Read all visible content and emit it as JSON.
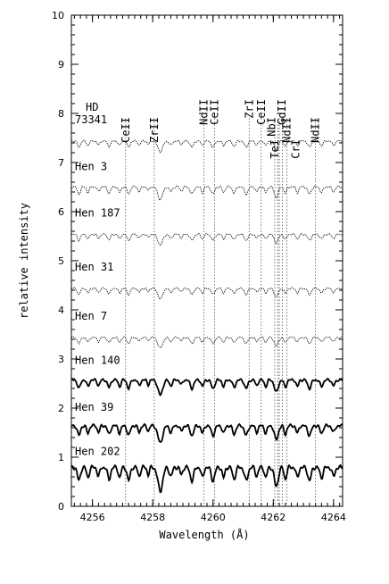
{
  "chart_data": {
    "type": "line",
    "xlabel": "Wavelength (Å)",
    "ylabel": "relative intensity",
    "xlim": [
      4255.3,
      4264.3
    ],
    "ylim": [
      0,
      10
    ],
    "x_ticks": [
      4256,
      4258,
      4260,
      4262,
      4264
    ],
    "y_ticks": [
      0,
      1,
      2,
      3,
      4,
      5,
      6,
      7,
      8,
      9,
      10
    ],
    "series": [
      {
        "name": "HD 73341",
        "label_lines": [
          "HD",
          "73341"
        ],
        "offset": 7.35,
        "amp": 0.25,
        "style": "thin"
      },
      {
        "name": "Hen 3",
        "offset": 6.4,
        "amp": 0.3,
        "style": "thin"
      },
      {
        "name": "Hen 187",
        "offset": 5.45,
        "amp": 0.25,
        "style": "thin"
      },
      {
        "name": "Hen 31",
        "offset": 4.35,
        "amp": 0.25,
        "style": "thin"
      },
      {
        "name": "Hen 7",
        "offset": 3.35,
        "amp": 0.25,
        "style": "thin"
      },
      {
        "name": "Hen 140",
        "offset": 2.45,
        "amp": 0.35,
        "style": "thick"
      },
      {
        "name": "Hen 39",
        "offset": 1.5,
        "amp": 0.4,
        "style": "thick"
      },
      {
        "name": "Hen 202",
        "offset": 0.6,
        "amp": 0.55,
        "style": "thick"
      }
    ],
    "line_ids": [
      {
        "label": "CeII",
        "x": 4257.1
      },
      {
        "label": "ZrII",
        "x": 4258.05
      },
      {
        "label": "NdII",
        "x": 4259.7
      },
      {
        "label": "CeII",
        "x": 4260.05
      },
      {
        "label": "ZrI",
        "x": 4261.2
      },
      {
        "label": "CeII",
        "x": 4261.6
      },
      {
        "label": "NbI",
        "x": 4262.05
      },
      {
        "label": "GdII",
        "x": 4262.15
      },
      {
        "label": "TeI",
        "x": 4262.2
      },
      {
        "label": "NdII",
        "x": 4262.3
      },
      {
        "label": "CrI",
        "x": 4262.45
      },
      {
        "label": "NdII",
        "x": 4263.4
      }
    ]
  }
}
